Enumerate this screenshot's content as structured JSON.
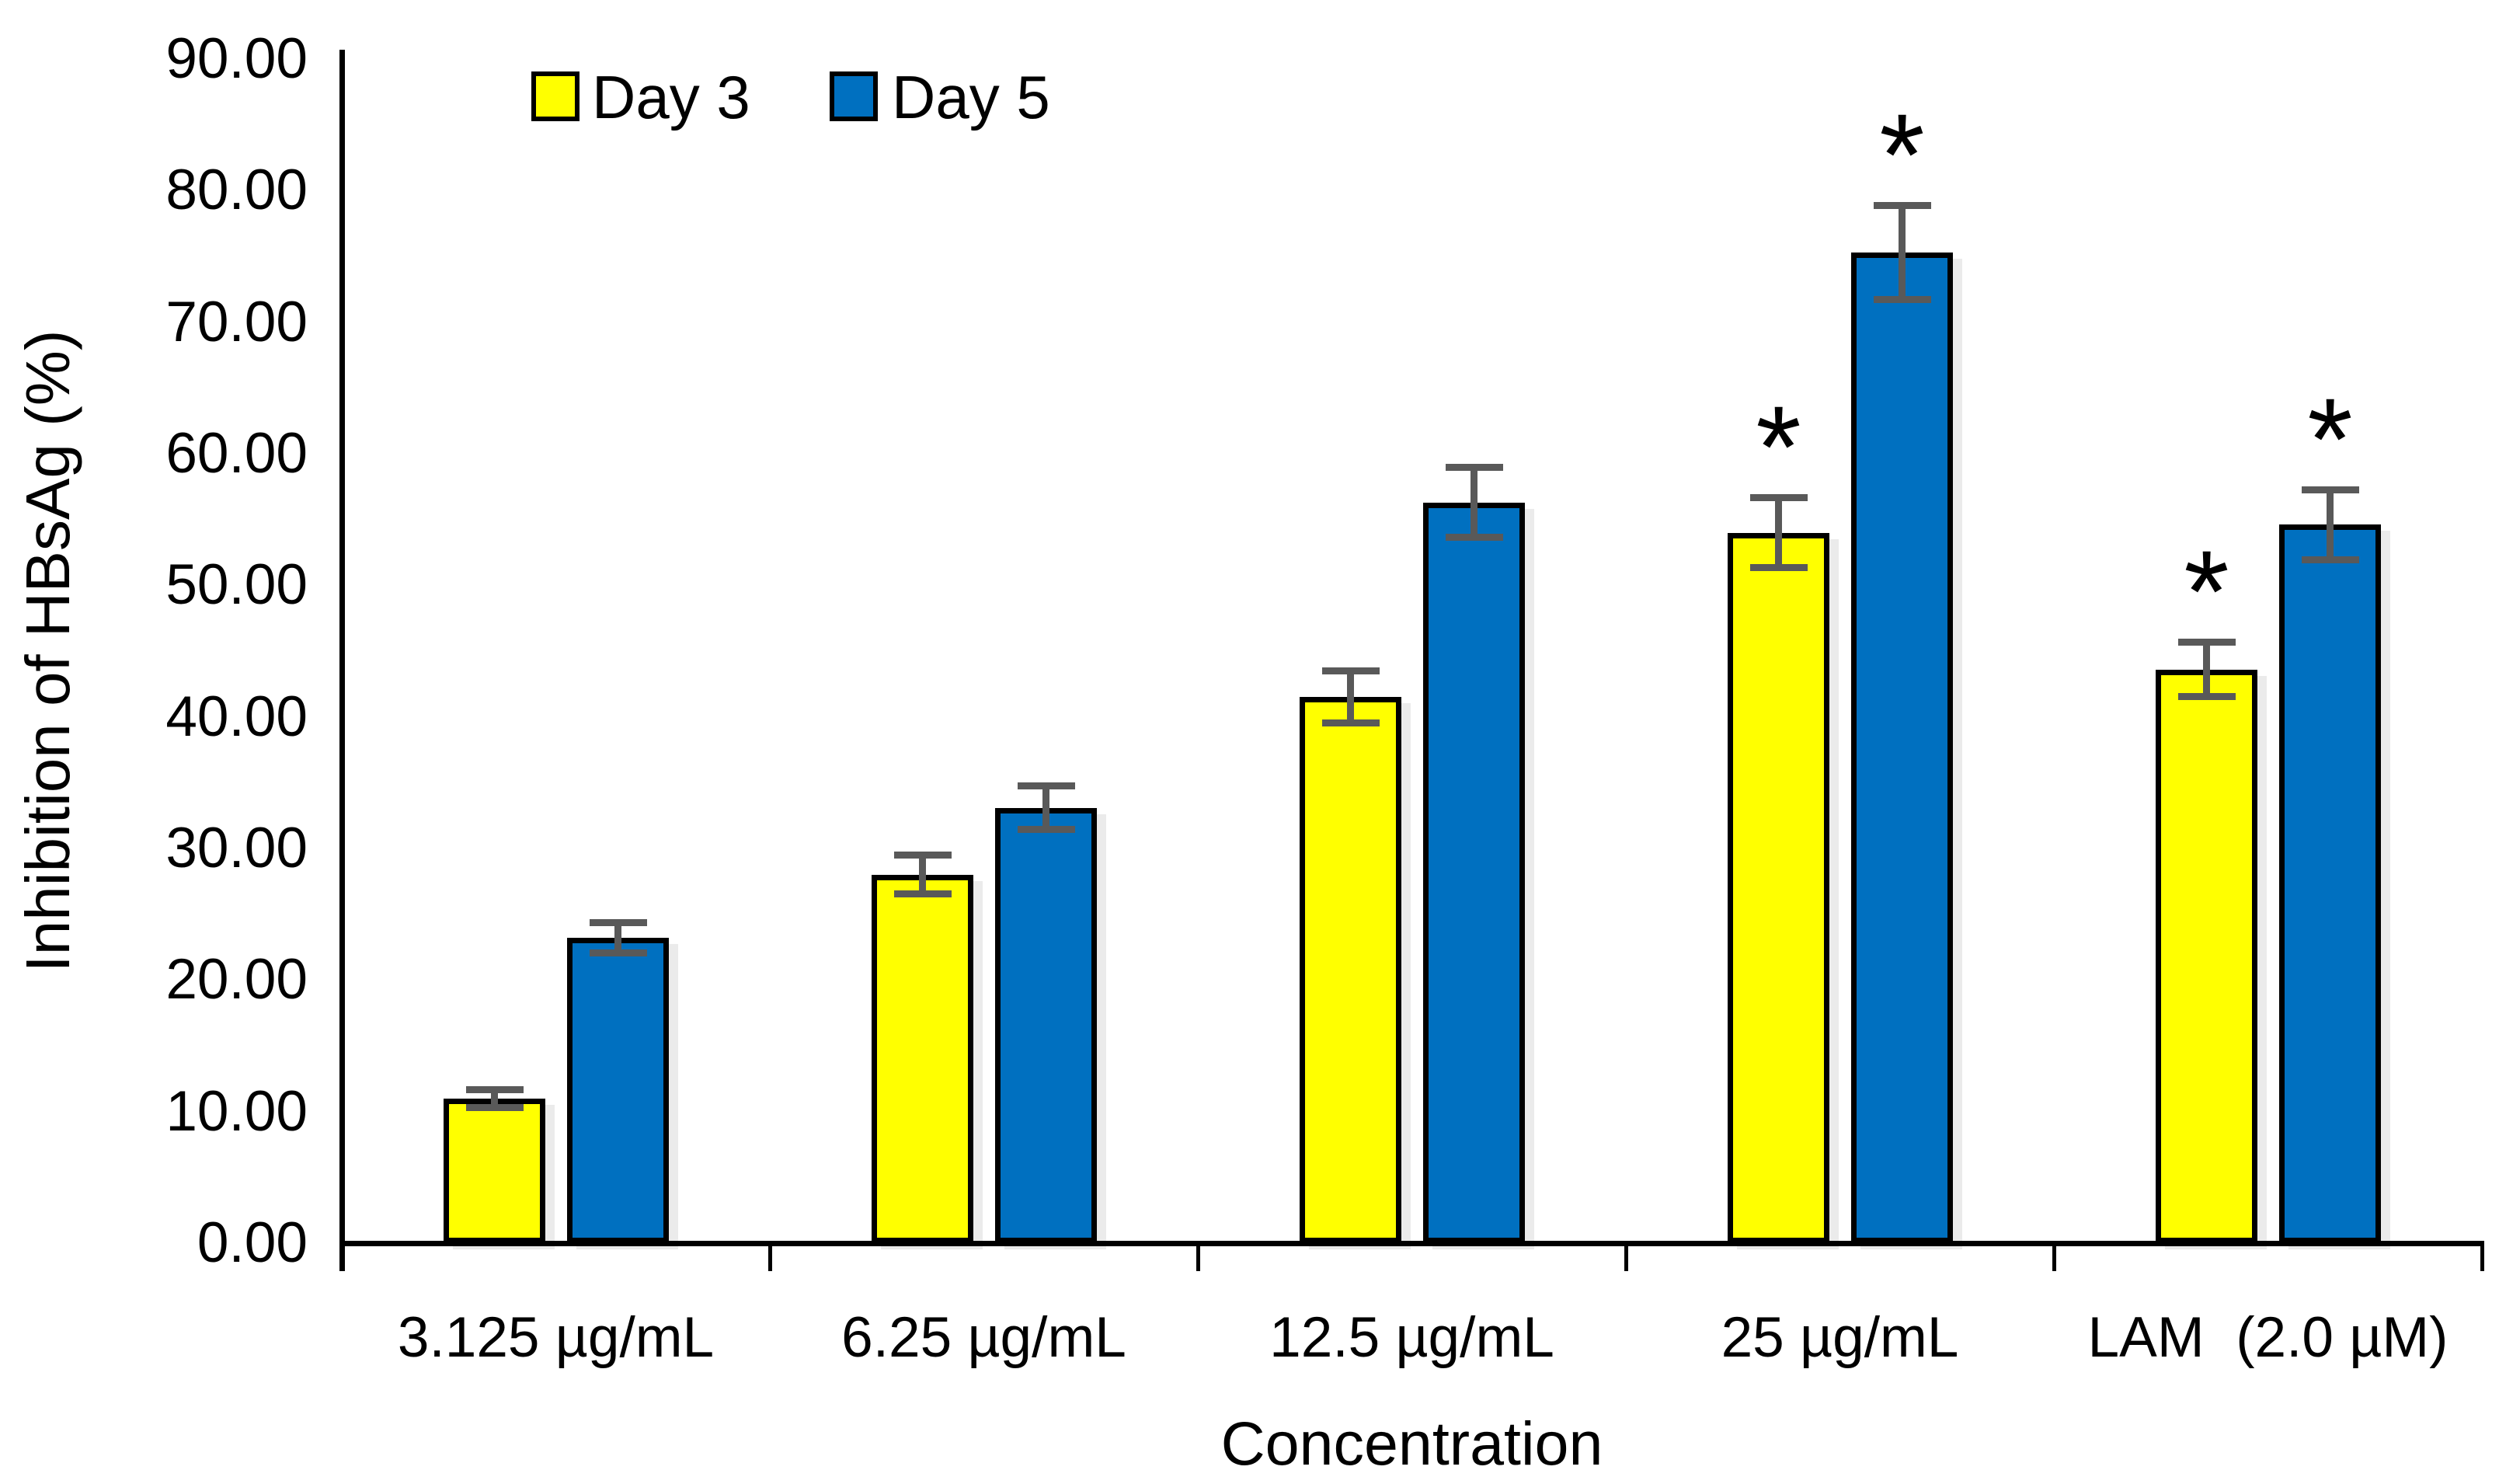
{
  "chart_data": {
    "type": "bar",
    "title": "",
    "xlabel": "Concentration",
    "ylabel": "Inhibition of HBsAg (%)",
    "categories": [
      "3.125 µg/mL",
      "6.25 µg/mL",
      "12.5 µg/mL",
      "25 µg/mL",
      "LAM  (2.0 µM)"
    ],
    "series": [
      {
        "name": "Day 3",
        "color": "#FFFF00",
        "values": [
          11.0,
          28.0,
          41.5,
          54.0,
          43.6
        ],
        "errors": [
          0.7,
          1.5,
          2.0,
          2.7,
          2.1
        ],
        "significant": [
          false,
          false,
          false,
          true,
          true
        ]
      },
      {
        "name": "Day 5",
        "color": "#0070C0",
        "values": [
          23.2,
          33.1,
          56.3,
          75.3,
          54.6
        ],
        "errors": [
          1.2,
          1.7,
          2.7,
          3.6,
          2.7
        ],
        "significant": [
          false,
          false,
          false,
          true,
          true
        ]
      }
    ],
    "ylim": [
      0,
      90
    ],
    "ytick_step": 10,
    "ytick_labels": [
      "0.00",
      "10.00",
      "20.00",
      "30.00",
      "40.00",
      "50.00",
      "60.00",
      "70.00",
      "80.00",
      "90.00"
    ],
    "grid": false,
    "legend_position": "top-inside-left",
    "significance_marker": "*",
    "colors": {
      "error_bar": "#595959",
      "bar_border": "#000000",
      "axis": "#000000",
      "background": "#FFFFFF"
    }
  }
}
